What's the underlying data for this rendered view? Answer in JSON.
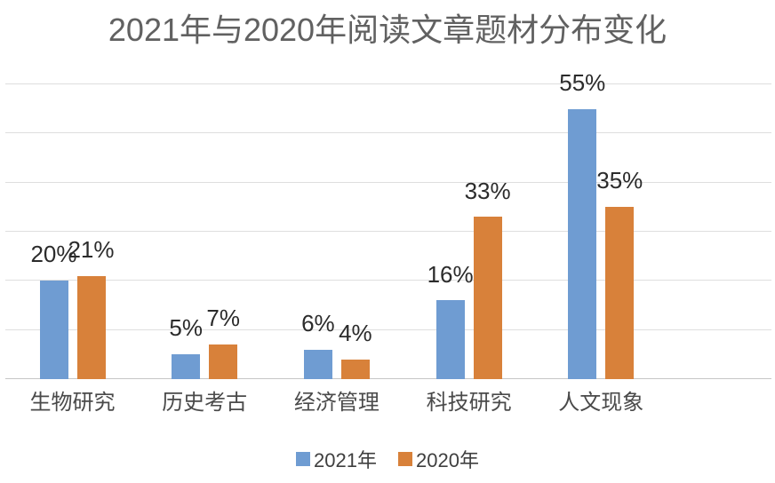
{
  "colors": {
    "series_2021": "#6f9cd2",
    "series_2020": "#d8813a",
    "gridline": "#dedede",
    "axis_line": "#c6c6c6",
    "title_text": "#616161",
    "value_label_text": "#2b2b2b",
    "category_text": "#4a4a4a",
    "legend_text": "#3f3f3f",
    "background": "#ffffff"
  },
  "chart_data": {
    "type": "bar",
    "title": "2021年与2020年阅读文章题材分布变化",
    "categories": [
      "生物研究",
      "历史考古",
      "经济管理",
      "科技研究",
      "人文现象"
    ],
    "series": [
      {
        "name": "2021年",
        "color": "#6f9cd2",
        "values": [
          20,
          5,
          6,
          16,
          55
        ]
      },
      {
        "name": "2020年",
        "color": "#d8813a",
        "values": [
          21,
          7,
          4,
          33,
          35
        ]
      }
    ],
    "value_suffix": "%",
    "xlabel": "",
    "ylabel": "",
    "ylim": [
      0,
      60
    ],
    "gridline_step": 10,
    "grid": true,
    "legend_position": "bottom",
    "legend_labels": [
      "2021年",
      "2020年"
    ]
  }
}
